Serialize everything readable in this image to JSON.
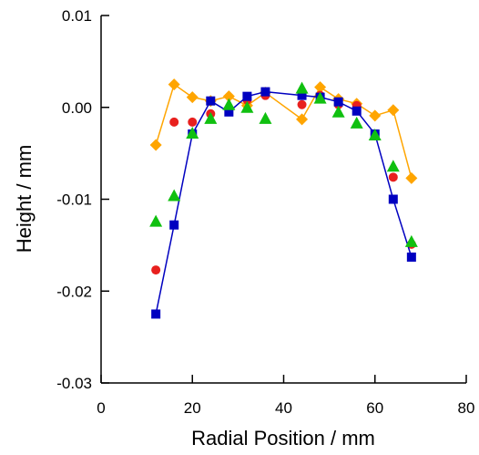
{
  "chart_data": {
    "type": "scatter",
    "title": "",
    "xlabel": "Radial Position / mm",
    "ylabel": "Height / mm",
    "xlim": [
      0,
      80
    ],
    "ylim": [
      -0.03,
      0.01
    ],
    "x_ticks": [
      0,
      20,
      40,
      60,
      80
    ],
    "x_tick_labels": [
      "0",
      "20",
      "40",
      "60",
      "80"
    ],
    "y_ticks": [
      -0.03,
      -0.02,
      -0.01,
      0.0,
      0.01
    ],
    "y_tick_labels": [
      "-0.03",
      "-0.02",
      "-0.01",
      "0.00",
      "0.01"
    ],
    "grid": false,
    "legend": "none",
    "series": [
      {
        "marker": "diamond",
        "color": "#FFA500",
        "line": true,
        "x": [
          12,
          16,
          20,
          24,
          28,
          32,
          36,
          44,
          48,
          52,
          56,
          60,
          64,
          68
        ],
        "y": [
          -0.0041,
          0.0025,
          0.0011,
          0.0007,
          0.0012,
          0.0002,
          0.0016,
          -0.0013,
          0.0022,
          0.0009,
          0.0004,
          -0.0009,
          -0.0003,
          -0.0077
        ]
      },
      {
        "marker": "circle",
        "color": "#E8201E",
        "line": false,
        "x": [
          12,
          16,
          20,
          24,
          28,
          32,
          36,
          44,
          48,
          52,
          56,
          60,
          64,
          68
        ],
        "y": [
          -0.0177,
          -0.0016,
          -0.0016,
          -0.0007,
          -0.0003,
          0.0008,
          0.0013,
          0.0003,
          0.0013,
          0.0003,
          0.0002,
          -0.0029,
          -0.0076,
          -0.0149
        ]
      },
      {
        "marker": "square",
        "color": "#0000C0",
        "line": true,
        "x": [
          12,
          16,
          20,
          24,
          28,
          32,
          36,
          44,
          48,
          52,
          56,
          60,
          64,
          68
        ],
        "y": [
          -0.0225,
          -0.0128,
          -0.0029,
          0.0007,
          -0.0005,
          0.0012,
          0.0017,
          0.0013,
          0.0011,
          0.0006,
          -0.0004,
          -0.0029,
          -0.01,
          -0.0163
        ]
      },
      {
        "marker": "triangle",
        "color": "#10C010",
        "line": false,
        "x": [
          12,
          16,
          20,
          24,
          28,
          32,
          36,
          44,
          48,
          52,
          56,
          60,
          64,
          68
        ],
        "y": [
          -0.0124,
          -0.0096,
          -0.0028,
          -0.0012,
          0.0003,
          0.0,
          -0.0012,
          0.0021,
          0.001,
          -0.0005,
          -0.0017,
          -0.003,
          -0.0064,
          -0.0146
        ]
      }
    ]
  }
}
